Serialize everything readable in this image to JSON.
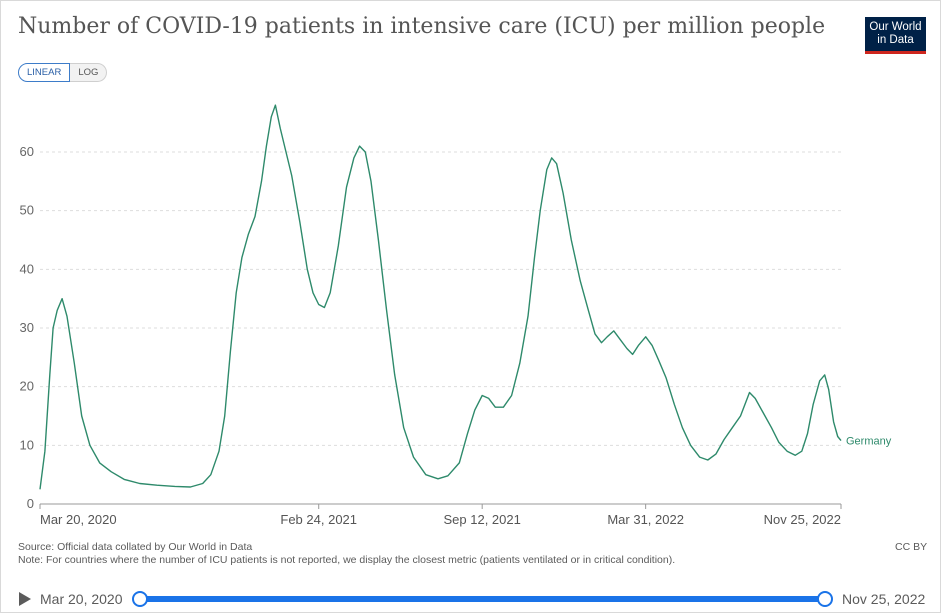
{
  "header": {
    "title": "Number of COVID-19 patients in intensive care (ICU) per million people",
    "logo_line1": "Our World",
    "logo_line2": "in Data"
  },
  "controls": {
    "linear_label": "LINEAR",
    "log_label": "LOG"
  },
  "footer": {
    "source": "Source: Official data collated by Our World in Data",
    "note": "Note: For countries where the number of ICU patients is not reported, we display the closest metric (patients ventilated or in critical condition).",
    "license": "CC BY"
  },
  "timeline": {
    "start_label": "Mar 20, 2020",
    "end_label": "Nov 25, 2022"
  },
  "colors": {
    "series": "#2e8a6b",
    "grid": "#dddddd",
    "axis": "#999999",
    "accent": "#1a73e8"
  },
  "chart_data": {
    "type": "line",
    "title": "Number of COVID-19 patients in intensive care (ICU) per million people",
    "xlabel": "",
    "ylabel": "",
    "x_range": [
      "2020-03-20",
      "2022-11-25"
    ],
    "ylim": [
      0,
      70
    ],
    "y_ticks": [
      0,
      10,
      20,
      30,
      40,
      50,
      60
    ],
    "x_ticks": [
      {
        "date": "2020-03-20",
        "label": "Mar 20, 2020"
      },
      {
        "date": "2021-02-24",
        "label": "Feb 24, 2021"
      },
      {
        "date": "2021-09-12",
        "label": "Sep 12, 2021"
      },
      {
        "date": "2022-03-31",
        "label": "Mar 31, 2022"
      },
      {
        "date": "2022-11-25",
        "label": "Nov 25, 2022"
      }
    ],
    "grid": "horizontal-dashed",
    "legend": "end-of-line label",
    "series": [
      {
        "name": "Germany",
        "points": [
          [
            "2020-03-20",
            2.5
          ],
          [
            "2020-03-26",
            9
          ],
          [
            "2020-04-01",
            22
          ],
          [
            "2020-04-05",
            30
          ],
          [
            "2020-04-10",
            33
          ],
          [
            "2020-04-16",
            35
          ],
          [
            "2020-04-22",
            32
          ],
          [
            "2020-05-01",
            24
          ],
          [
            "2020-05-10",
            15
          ],
          [
            "2020-05-20",
            10
          ],
          [
            "2020-06-01",
            7
          ],
          [
            "2020-06-15",
            5.5
          ],
          [
            "2020-07-01",
            4.2
          ],
          [
            "2020-07-20",
            3.5
          ],
          [
            "2020-08-10",
            3.2
          ],
          [
            "2020-09-01",
            3
          ],
          [
            "2020-09-20",
            2.9
          ],
          [
            "2020-10-05",
            3.5
          ],
          [
            "2020-10-15",
            5
          ],
          [
            "2020-10-25",
            9
          ],
          [
            "2020-11-01",
            15
          ],
          [
            "2020-11-08",
            26
          ],
          [
            "2020-11-15",
            36
          ],
          [
            "2020-11-22",
            42
          ],
          [
            "2020-11-30",
            46
          ],
          [
            "2020-12-08",
            49
          ],
          [
            "2020-12-16",
            55
          ],
          [
            "2020-12-22",
            61
          ],
          [
            "2020-12-28",
            66
          ],
          [
            "2021-01-02",
            68
          ],
          [
            "2021-01-08",
            64
          ],
          [
            "2021-01-15",
            60
          ],
          [
            "2021-01-22",
            56
          ],
          [
            "2021-02-01",
            48
          ],
          [
            "2021-02-10",
            40
          ],
          [
            "2021-02-17",
            36
          ],
          [
            "2021-02-24",
            34
          ],
          [
            "2021-03-03",
            33.5
          ],
          [
            "2021-03-10",
            36
          ],
          [
            "2021-03-20",
            44
          ],
          [
            "2021-03-30",
            54
          ],
          [
            "2021-04-08",
            59
          ],
          [
            "2021-04-15",
            61
          ],
          [
            "2021-04-22",
            60
          ],
          [
            "2021-04-29",
            55
          ],
          [
            "2021-05-08",
            45
          ],
          [
            "2021-05-18",
            33
          ],
          [
            "2021-05-28",
            22
          ],
          [
            "2021-06-08",
            13
          ],
          [
            "2021-06-20",
            8
          ],
          [
            "2021-07-05",
            5
          ],
          [
            "2021-07-20",
            4.3
          ],
          [
            "2021-08-01",
            4.8
          ],
          [
            "2021-08-15",
            7
          ],
          [
            "2021-08-25",
            12
          ],
          [
            "2021-09-03",
            16
          ],
          [
            "2021-09-12",
            18.5
          ],
          [
            "2021-09-20",
            18
          ],
          [
            "2021-09-28",
            16.5
          ],
          [
            "2021-10-08",
            16.5
          ],
          [
            "2021-10-18",
            18.5
          ],
          [
            "2021-10-28",
            24
          ],
          [
            "2021-11-07",
            32
          ],
          [
            "2021-11-15",
            42
          ],
          [
            "2021-11-22",
            50
          ],
          [
            "2021-11-30",
            57
          ],
          [
            "2021-12-06",
            59
          ],
          [
            "2021-12-12",
            58
          ],
          [
            "2021-12-20",
            53
          ],
          [
            "2021-12-30",
            45
          ],
          [
            "2022-01-10",
            38
          ],
          [
            "2022-01-20",
            33
          ],
          [
            "2022-01-28",
            29
          ],
          [
            "2022-02-05",
            27.5
          ],
          [
            "2022-02-12",
            28.5
          ],
          [
            "2022-02-20",
            29.5
          ],
          [
            "2022-02-28",
            28
          ],
          [
            "2022-03-08",
            26.5
          ],
          [
            "2022-03-15",
            25.5
          ],
          [
            "2022-03-22",
            27
          ],
          [
            "2022-03-31",
            28.5
          ],
          [
            "2022-04-08",
            27
          ],
          [
            "2022-04-16",
            24.5
          ],
          [
            "2022-04-25",
            21.5
          ],
          [
            "2022-05-05",
            17
          ],
          [
            "2022-05-15",
            13
          ],
          [
            "2022-05-25",
            10
          ],
          [
            "2022-06-05",
            8
          ],
          [
            "2022-06-15",
            7.5
          ],
          [
            "2022-06-25",
            8.5
          ],
          [
            "2022-07-05",
            11
          ],
          [
            "2022-07-15",
            13
          ],
          [
            "2022-07-25",
            15
          ],
          [
            "2022-08-05",
            19
          ],
          [
            "2022-08-12",
            18
          ],
          [
            "2022-08-22",
            15.5
          ],
          [
            "2022-09-01",
            13
          ],
          [
            "2022-09-10",
            10.5
          ],
          [
            "2022-09-20",
            9
          ],
          [
            "2022-09-30",
            8.3
          ],
          [
            "2022-10-08",
            9
          ],
          [
            "2022-10-15",
            12
          ],
          [
            "2022-10-22",
            17
          ],
          [
            "2022-10-30",
            21
          ],
          [
            "2022-11-05",
            22
          ],
          [
            "2022-11-10",
            19.5
          ],
          [
            "2022-11-16",
            14
          ],
          [
            "2022-11-21",
            11.5
          ],
          [
            "2022-11-25",
            10.8
          ]
        ]
      }
    ]
  }
}
